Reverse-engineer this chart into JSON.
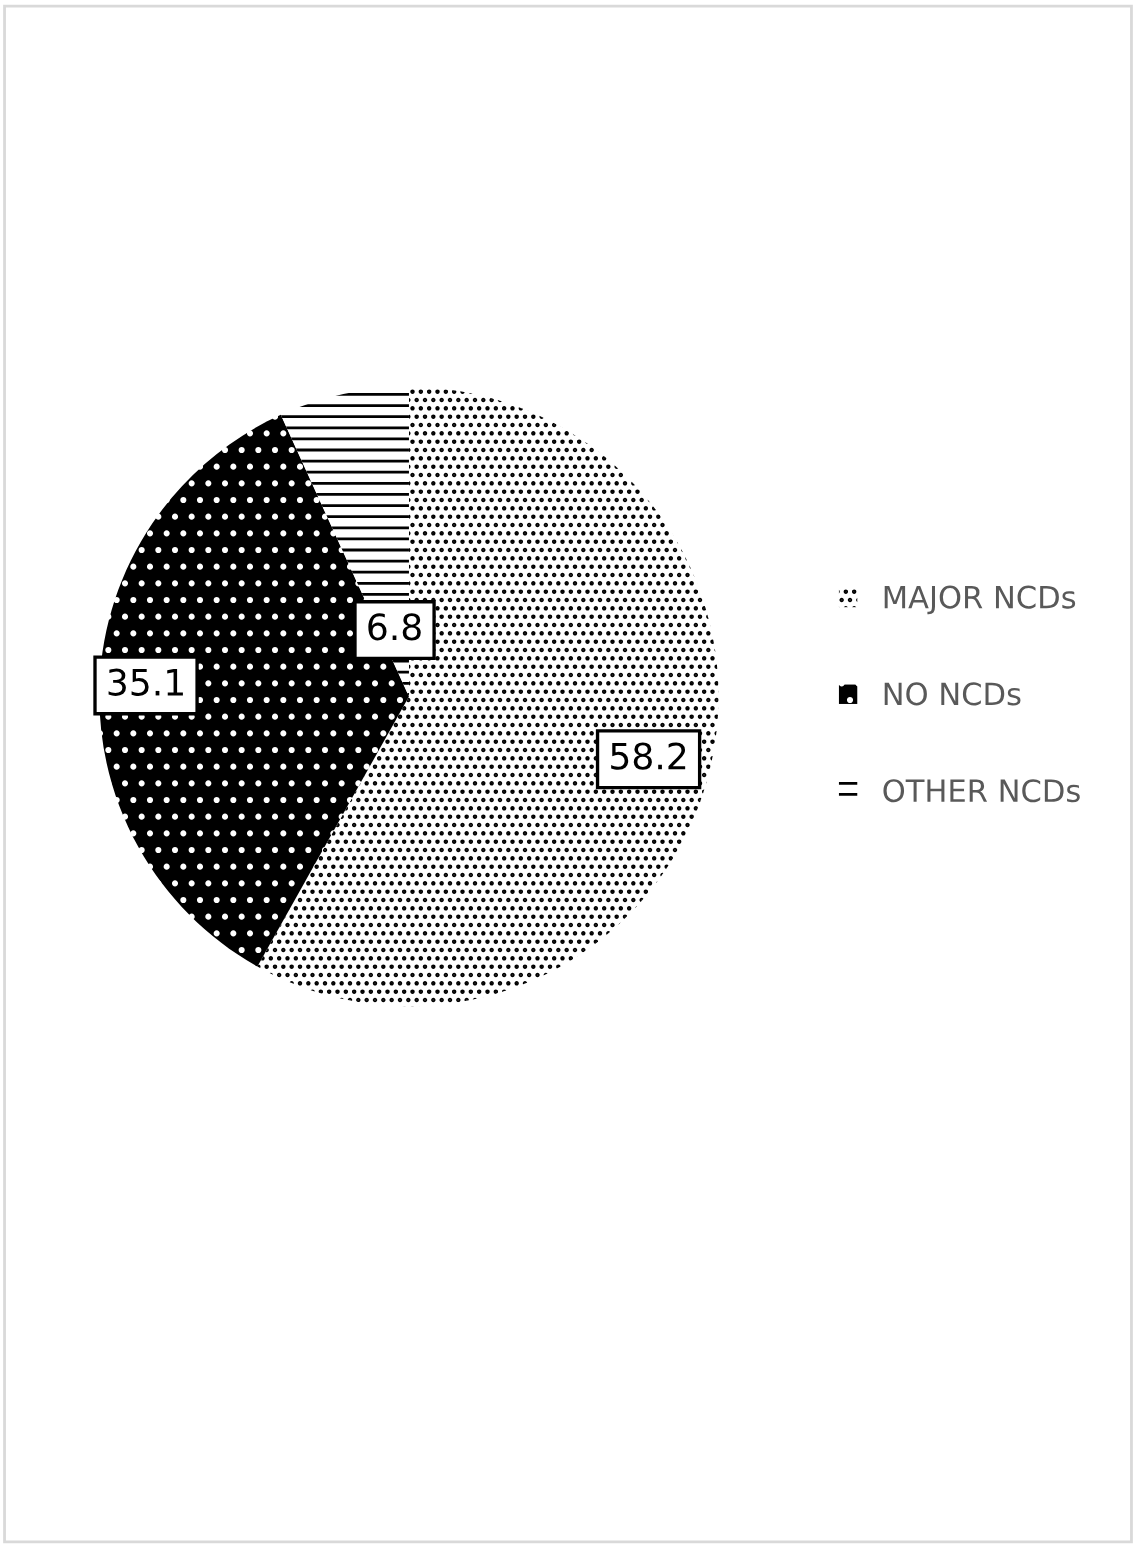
{
  "chart_data": {
    "type": "pie",
    "categories": [
      "MAJOR NCDs",
      "NO NCDs",
      "OTHER NCDs"
    ],
    "values": [
      58.2,
      35.1,
      6.8
    ],
    "colors": [
      "#ffffff",
      "#000000",
      "#ffffff"
    ],
    "data_labels": true,
    "legend": "right"
  }
}
